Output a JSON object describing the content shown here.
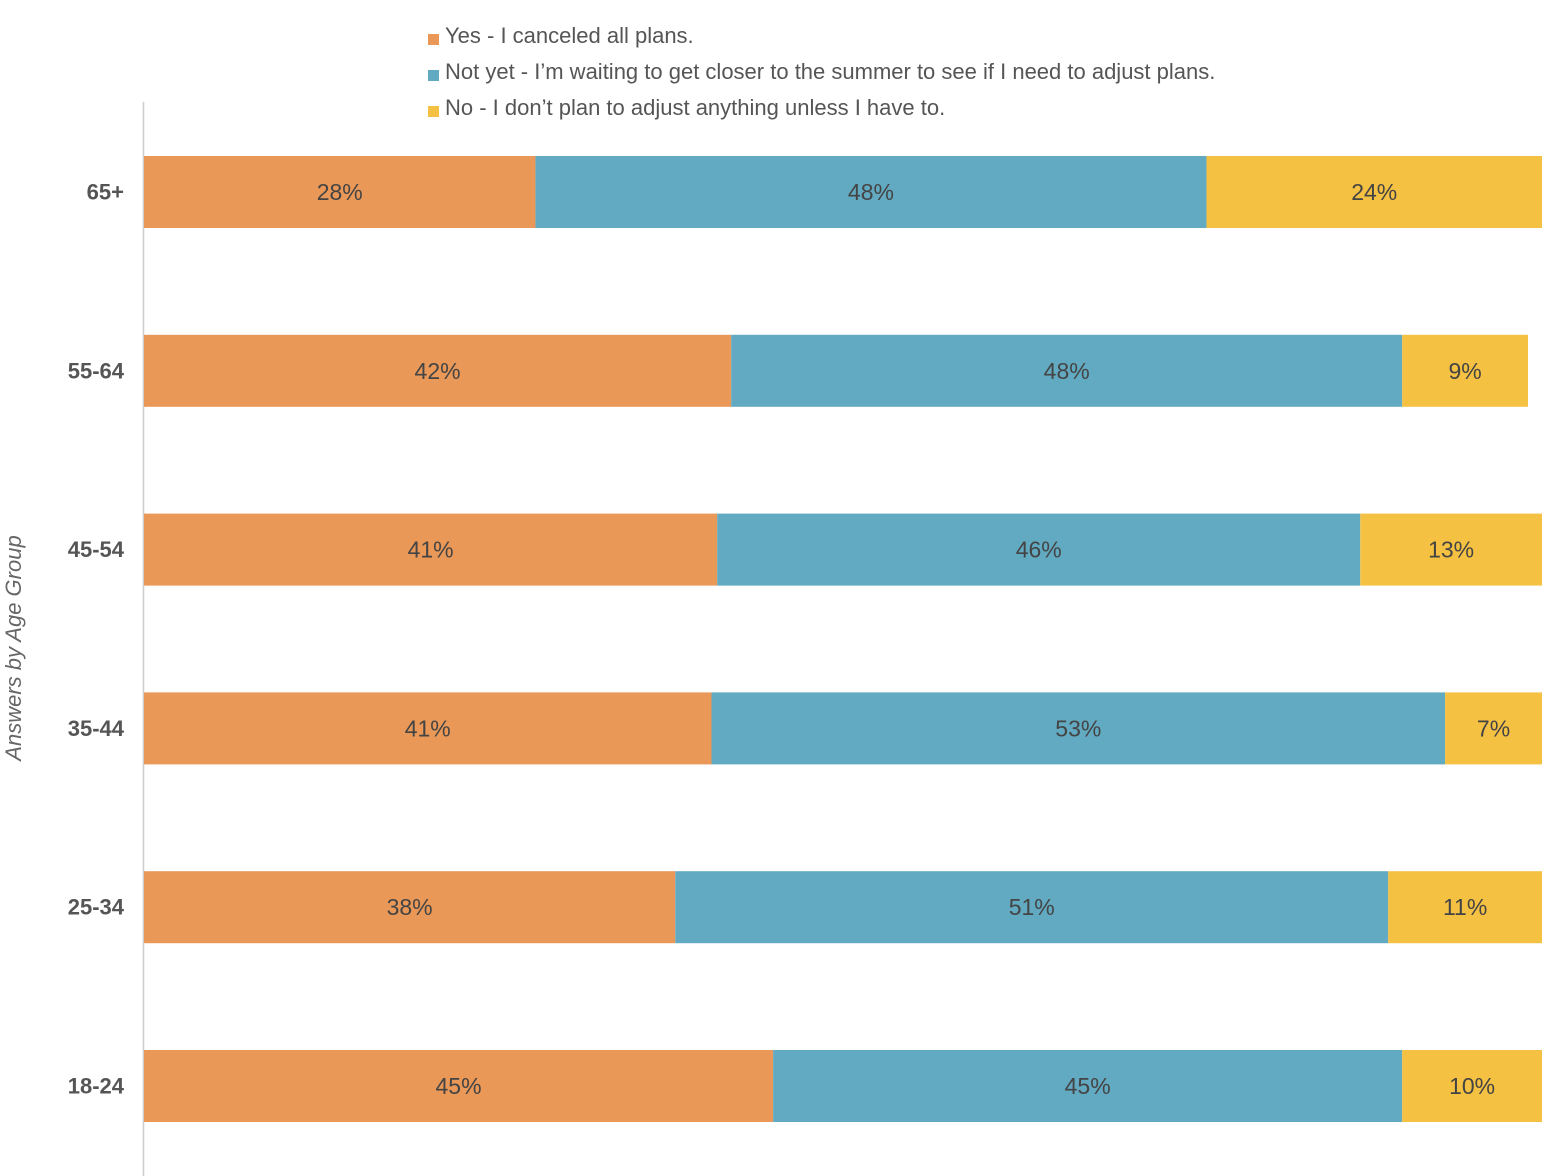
{
  "chart_data": {
    "type": "bar",
    "orientation": "horizontal",
    "stacked": true,
    "ylabel": "Answers by Age Group",
    "xlim": [
      0,
      100
    ],
    "categories": [
      "65+",
      "55-64",
      "45-54",
      "35-44",
      "25-34",
      "18-24"
    ],
    "series": [
      {
        "name": "Yes - I canceled all plans.",
        "color": "#E99857",
        "values": [
          28,
          42,
          41,
          41,
          38,
          45
        ],
        "labels": [
          "28%",
          "42%",
          "41%",
          "41%",
          "38%",
          "45%"
        ]
      },
      {
        "name": "Not yet - I’m waiting to get closer to the summer to see if I need to adjust plans.",
        "color": "#62AAC2",
        "values": [
          48,
          48,
          46,
          53,
          51,
          45
        ],
        "labels": [
          "48%",
          "48%",
          "46%",
          "53%",
          "51%",
          "45%"
        ]
      },
      {
        "name": "No - I don’t plan to adjust anything unless I have to.",
        "color": "#F5C142",
        "values": [
          24,
          9,
          13,
          7,
          11,
          10
        ],
        "labels": [
          "24%",
          "9%",
          "13%",
          "7%",
          "11%",
          "10%"
        ]
      }
    ],
    "legend_position": "top",
    "grid": false,
    "label_color": "#444444",
    "axis_color": "#CCCCCC"
  }
}
